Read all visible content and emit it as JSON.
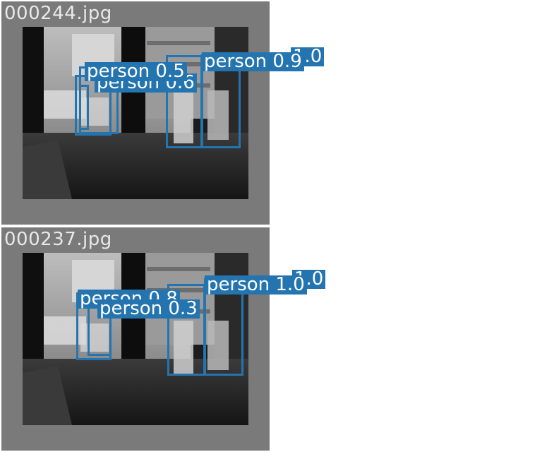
{
  "tiles": [
    {
      "filename": "000244.jpg",
      "detections": [
        {
          "class": "person",
          "confidence": "1.0"
        },
        {
          "class": "person",
          "confidence": "0.9"
        },
        {
          "class": "person",
          "confidence": "0.5"
        },
        {
          "class": "person",
          "confidence": "0.6"
        }
      ]
    },
    {
      "filename": "000237.jpg",
      "detections": [
        {
          "class": "person",
          "confidence": "1.0"
        },
        {
          "class": "person",
          "confidence": "1.0"
        },
        {
          "class": "person",
          "confidence": "0.8"
        },
        {
          "class": "person",
          "confidence": "0.3"
        }
      ]
    }
  ],
  "colors": {
    "box": "#2474b0",
    "label_text": "#ffffff",
    "tile_bg": "#7a7a7a",
    "filename_text": "#e9e9e9"
  }
}
